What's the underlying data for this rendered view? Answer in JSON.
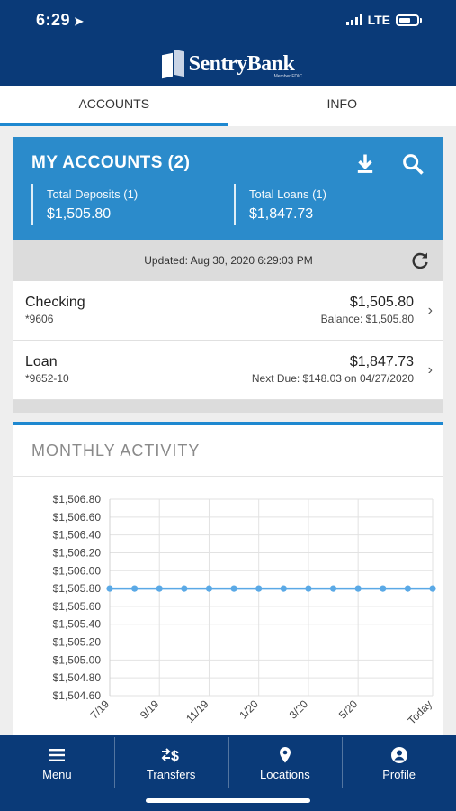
{
  "status_bar": {
    "time": "6:29",
    "network": "LTE"
  },
  "brand": {
    "name": "SentryBank",
    "tagline": "Member FDIC"
  },
  "tabs": [
    {
      "label": "ACCOUNTS",
      "active": true
    },
    {
      "label": "INFO",
      "active": false
    }
  ],
  "accounts": {
    "title": "MY ACCOUNTS (2)",
    "deposits": {
      "label": "Total Deposits (1)",
      "value": "$1,505.80"
    },
    "loans": {
      "label": "Total Loans (1)",
      "value": "$1,847.73"
    },
    "updated": "Updated: Aug 30, 2020 6:29:03 PM",
    "items": [
      {
        "name": "Checking",
        "number": "*9606",
        "amount": "$1,505.80",
        "detail": "Balance: $1,505.80"
      },
      {
        "name": "Loan",
        "number": "*9652-10",
        "amount": "$1,847.73",
        "detail": "Next Due: $148.03 on 04/27/2020"
      }
    ]
  },
  "activity": {
    "title": "MONTHLY ACTIVITY"
  },
  "chart_data": {
    "type": "line",
    "title": "MONTHLY ACTIVITY",
    "x": [
      "7/19",
      "",
      "9/19",
      "",
      "11/19",
      "",
      "1/20",
      "",
      "3/20",
      "",
      "5/20",
      "",
      "",
      "Today"
    ],
    "x_tick_labels": [
      "7/19",
      "9/19",
      "11/19",
      "1/20",
      "3/20",
      "5/20",
      "Today"
    ],
    "y_tick_labels": [
      "$1,506.80",
      "$1,506.60",
      "$1,506.40",
      "$1,506.20",
      "$1,506.00",
      "$1,505.80",
      "$1,505.60",
      "$1,505.40",
      "$1,505.20",
      "$1,505.00",
      "$1,504.80",
      "$1,504.60"
    ],
    "series": [
      {
        "values": [
          1505.8,
          1505.8,
          1505.8,
          1505.8,
          1505.8,
          1505.8,
          1505.8,
          1505.8,
          1505.8,
          1505.8,
          1505.8,
          1505.8,
          1505.8,
          1505.8
        ]
      }
    ],
    "ylim": [
      1504.6,
      1506.8
    ],
    "grid": true,
    "color": "#5aa9e6"
  },
  "nav": [
    {
      "label": "Menu",
      "icon": "menu-icon"
    },
    {
      "label": "Transfers",
      "icon": "transfer-icon"
    },
    {
      "label": "Locations",
      "icon": "location-icon"
    },
    {
      "label": "Profile",
      "icon": "profile-icon"
    }
  ]
}
